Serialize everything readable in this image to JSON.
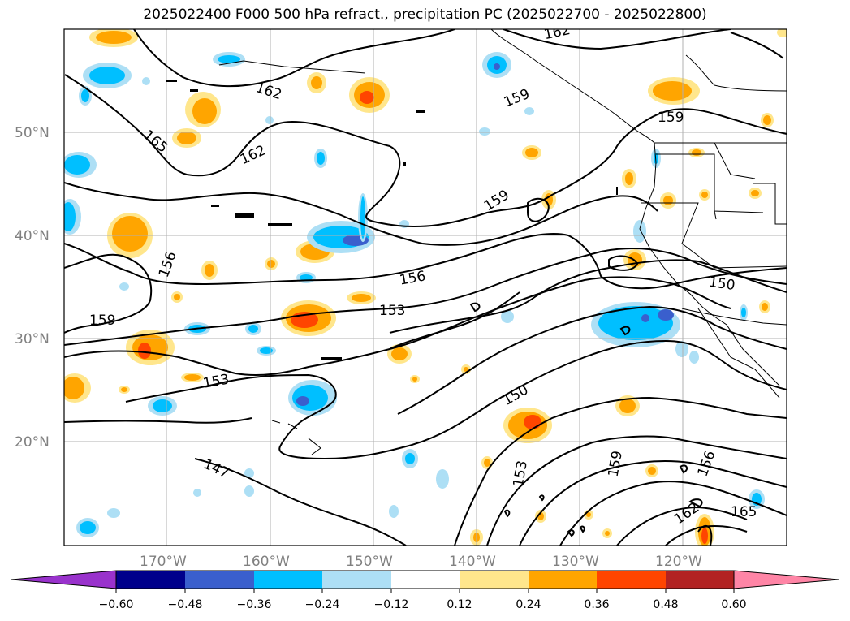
{
  "title": "2025022400 F000 500 hPa refract., precipitation PC (2025022700 - 2025022800)",
  "lat_labels": [
    "50°N",
    "40°N",
    "30°N",
    "20°N"
  ],
  "lon_labels": [
    "170°W",
    "160°W",
    "150°W",
    "140°W",
    "130°W",
    "120°W"
  ],
  "contour_labels": [
    "162",
    "165",
    "162",
    "159",
    "159",
    "159",
    "156",
    "159",
    "156",
    "153",
    "150",
    "153",
    "150",
    "147",
    "153",
    "159",
    "156",
    "162",
    "165",
    "162"
  ],
  "colorbar": {
    "ticks": [
      "−0.60",
      "−0.48",
      "−0.36",
      "−0.24",
      "−0.12",
      "0.12",
      "0.24",
      "0.36",
      "0.48",
      "0.60"
    ],
    "colors": [
      "#9932CC",
      "#00008B",
      "#3A5FCD",
      "#00BFFF",
      "#ADDFF5",
      "#FFFFFF",
      "#FFE68C",
      "#FFA500",
      "#FF4500",
      "#B22222",
      "#FF85A6"
    ]
  },
  "colors": {
    "contour": "#000000",
    "grid": "#b0b0b0",
    "coast": "#000000"
  }
}
